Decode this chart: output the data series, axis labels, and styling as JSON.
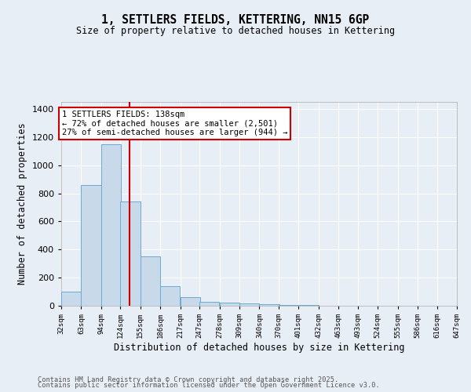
{
  "title": "1, SETTLERS FIELDS, KETTERING, NN15 6GP",
  "subtitle": "Size of property relative to detached houses in Kettering",
  "xlabel": "Distribution of detached houses by size in Kettering",
  "ylabel": "Number of detached properties",
  "bar_color": "#c8daea",
  "bar_edge_color": "#6aaad4",
  "background_color": "#e8eef5",
  "plot_bg_color": "#e8eef5",
  "grid_color": "#ffffff",
  "bins": [
    32,
    63,
    94,
    124,
    155,
    186,
    217,
    247,
    278,
    309,
    340,
    370,
    401,
    432,
    463,
    493,
    524,
    555,
    586,
    616,
    647
  ],
  "values": [
    100,
    860,
    1150,
    740,
    350,
    140,
    60,
    30,
    20,
    15,
    10,
    5,
    5,
    2,
    1,
    1,
    0,
    0,
    0,
    0
  ],
  "red_line_x": 138,
  "ylim": [
    0,
    1450
  ],
  "yticks": [
    0,
    200,
    400,
    600,
    800,
    1000,
    1200,
    1400
  ],
  "annotation_title": "1 SETTLERS FIELDS: 138sqm",
  "annotation_line1": "← 72% of detached houses are smaller (2,501)",
  "annotation_line2": "27% of semi-detached houses are larger (944) →",
  "footer_line1": "Contains HM Land Registry data © Crown copyright and database right 2025.",
  "footer_line2": "Contains public sector information licensed under the Open Government Licence v3.0."
}
